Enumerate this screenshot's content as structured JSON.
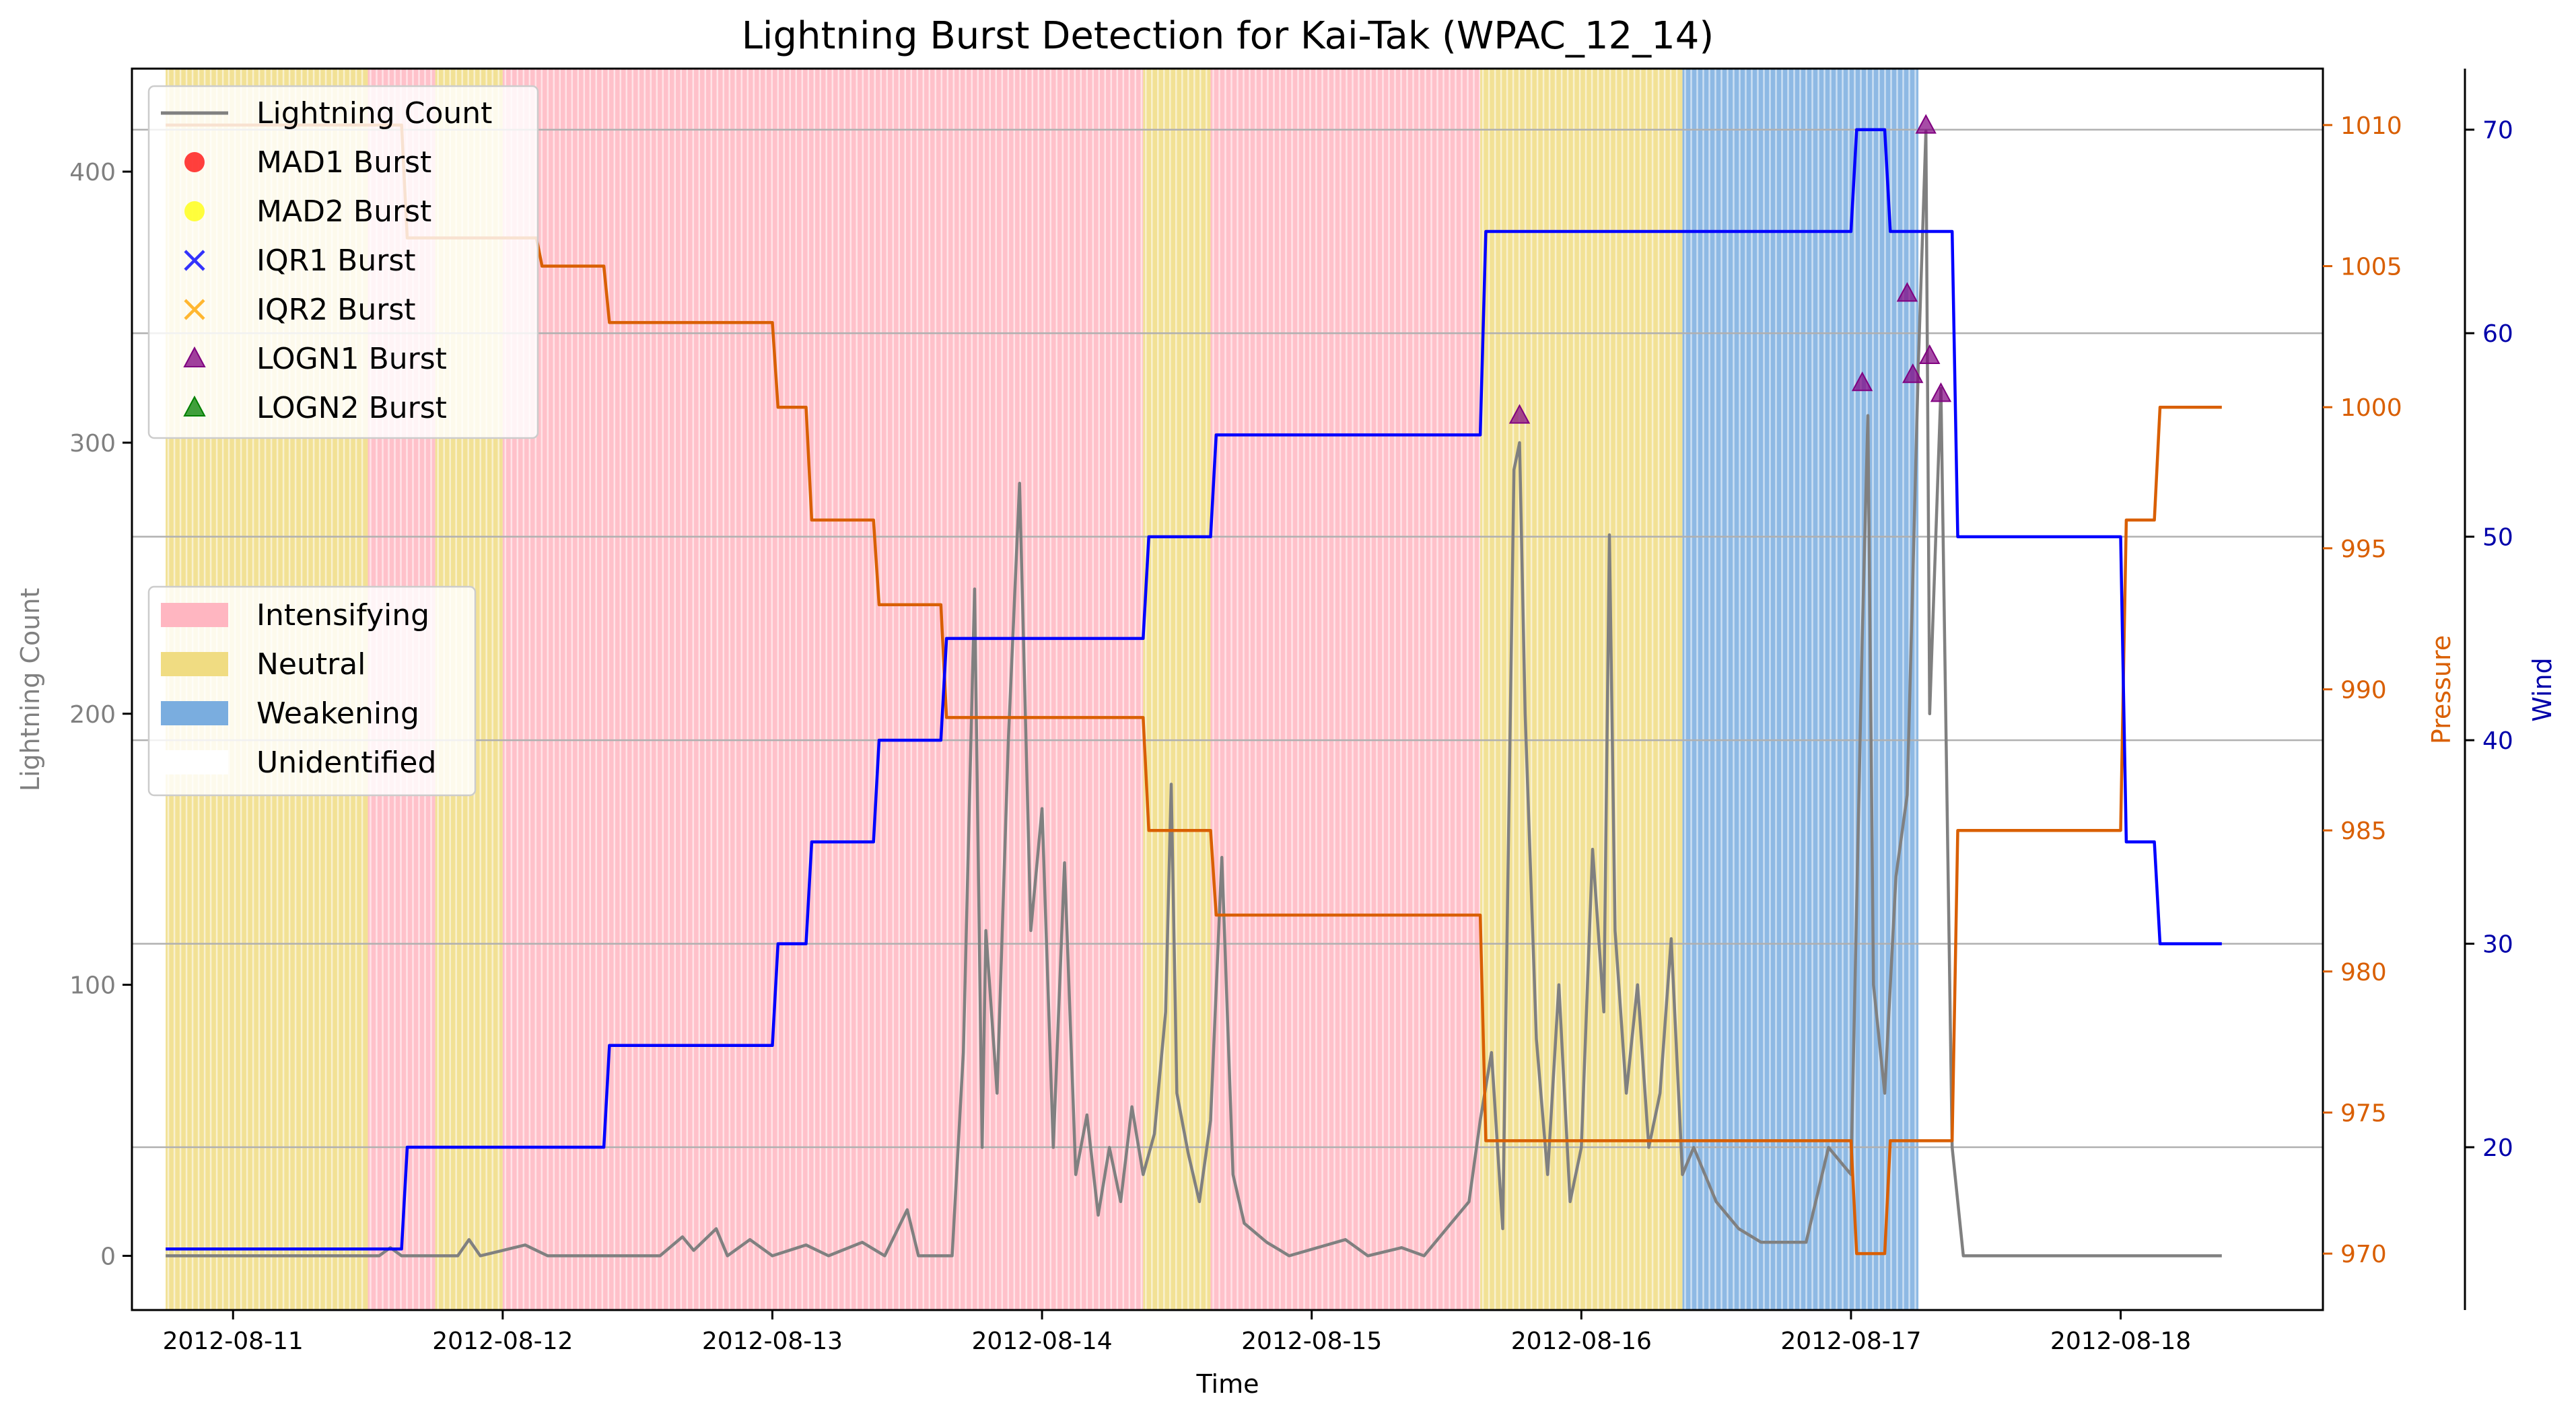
{
  "chart_data": {
    "type": "line",
    "title": "Lightning Burst Detection for Kai-Tak (WPAC_12_14)",
    "xlabel": "Time",
    "ylabel_left": "Lightning Count",
    "ylabel_pressure": "Pressure",
    "ylabel_wind": "Wind",
    "xlim": [
      "2012-08-10T15:00",
      "2012-08-18T18:00"
    ],
    "x_ticks": [
      "2012-08-11",
      "2012-08-12",
      "2012-08-13",
      "2012-08-14",
      "2012-08-15",
      "2012-08-16",
      "2012-08-17",
      "2012-08-18"
    ],
    "lightning_axis": {
      "ylim": [
        -20,
        438
      ],
      "ticks": [
        0,
        100,
        200,
        300,
        400
      ]
    },
    "pressure_axis": {
      "ylim": [
        968,
        1012
      ],
      "ticks": [
        970,
        975,
        980,
        985,
        990,
        995,
        1000,
        1005,
        1010
      ]
    },
    "wind_axis": {
      "ylim": [
        12,
        73
      ],
      "ticks": [
        20,
        30,
        40,
        50,
        60,
        70
      ]
    },
    "grid": "horizontal gridlines at wind ticks",
    "legend_series_location": "upper-left",
    "legend_phase_location": "center-left",
    "legend_series": [
      {
        "label": "Lightning Count",
        "marker": "line",
        "color": "#808080"
      },
      {
        "label": "MAD1 Burst",
        "marker": "circle",
        "color": "#ff0000"
      },
      {
        "label": "MAD2 Burst",
        "marker": "circle",
        "color": "#ffff00"
      },
      {
        "label": "IQR1 Burst",
        "marker": "x",
        "color": "#0000ff"
      },
      {
        "label": "IQR2 Burst",
        "marker": "x",
        "color": "#ffa500"
      },
      {
        "label": "LOGN1 Burst",
        "marker": "triangle",
        "color": "#800080"
      },
      {
        "label": "LOGN2 Burst",
        "marker": "triangle",
        "color": "#008000"
      }
    ],
    "legend_phases": [
      {
        "label": "Intensifying",
        "color": "#ffb6c1"
      },
      {
        "label": "Neutral",
        "color": "#f0dc82"
      },
      {
        "label": "Weakening",
        "color": "#7aaddf"
      },
      {
        "label": "Unidentified",
        "color": "#ffffff"
      }
    ],
    "phases": [
      {
        "phase": "Neutral",
        "start": "2012-08-10T18:00",
        "end": "2012-08-11T12:00"
      },
      {
        "phase": "Intensifying",
        "start": "2012-08-11T12:00",
        "end": "2012-08-11T18:00"
      },
      {
        "phase": "Neutral",
        "start": "2012-08-11T18:00",
        "end": "2012-08-12T00:00"
      },
      {
        "phase": "Intensifying",
        "start": "2012-08-12T00:00",
        "end": "2012-08-14T09:00"
      },
      {
        "phase": "Neutral",
        "start": "2012-08-14T09:00",
        "end": "2012-08-14T15:00"
      },
      {
        "phase": "Intensifying",
        "start": "2012-08-14T15:00",
        "end": "2012-08-15T15:00"
      },
      {
        "phase": "Neutral",
        "start": "2012-08-15T15:00",
        "end": "2012-08-16T09:00"
      },
      {
        "phase": "Weakening",
        "start": "2012-08-16T09:00",
        "end": "2012-08-17T06:00"
      }
    ],
    "pressure_series": {
      "name": "Pressure",
      "color": "#d95f02",
      "points": [
        [
          "2012-08-10T18:00",
          1010
        ],
        [
          "2012-08-11T15:00",
          1010
        ],
        [
          "2012-08-11T15:30",
          1006
        ],
        [
          "2012-08-12T03:00",
          1006
        ],
        [
          "2012-08-12T03:30",
          1005
        ],
        [
          "2012-08-12T09:00",
          1005
        ],
        [
          "2012-08-12T09:30",
          1003
        ],
        [
          "2012-08-13T00:00",
          1003
        ],
        [
          "2012-08-13T00:30",
          1000
        ],
        [
          "2012-08-13T03:00",
          1000
        ],
        [
          "2012-08-13T03:30",
          996
        ],
        [
          "2012-08-13T09:00",
          996
        ],
        [
          "2012-08-13T09:30",
          993
        ],
        [
          "2012-08-13T15:00",
          993
        ],
        [
          "2012-08-13T15:30",
          989
        ],
        [
          "2012-08-14T09:00",
          989
        ],
        [
          "2012-08-14T09:30",
          985
        ],
        [
          "2012-08-14T15:00",
          985
        ],
        [
          "2012-08-14T15:30",
          982
        ],
        [
          "2012-08-15T15:00",
          982
        ],
        [
          "2012-08-15T15:30",
          974
        ],
        [
          "2012-08-17T00:00",
          974
        ],
        [
          "2012-08-17T00:30",
          970
        ],
        [
          "2012-08-17T03:00",
          970
        ],
        [
          "2012-08-17T03:30",
          974
        ],
        [
          "2012-08-17T09:00",
          974
        ],
        [
          "2012-08-17T09:30",
          985
        ],
        [
          "2012-08-18T00:00",
          985
        ],
        [
          "2012-08-18T00:30",
          996
        ],
        [
          "2012-08-18T03:00",
          996
        ],
        [
          "2012-08-18T03:30",
          1000
        ],
        [
          "2012-08-18T09:00",
          1000
        ]
      ]
    },
    "wind_series": {
      "name": "Wind",
      "color": "#0000ff",
      "points": [
        [
          "2012-08-10T18:00",
          15
        ],
        [
          "2012-08-11T15:00",
          15
        ],
        [
          "2012-08-11T15:30",
          20
        ],
        [
          "2012-08-12T09:00",
          20
        ],
        [
          "2012-08-12T09:30",
          25
        ],
        [
          "2012-08-13T00:00",
          25
        ],
        [
          "2012-08-13T00:30",
          30
        ],
        [
          "2012-08-13T03:00",
          30
        ],
        [
          "2012-08-13T03:30",
          35
        ],
        [
          "2012-08-13T09:00",
          35
        ],
        [
          "2012-08-13T09:30",
          40
        ],
        [
          "2012-08-13T15:00",
          40
        ],
        [
          "2012-08-13T15:30",
          45
        ],
        [
          "2012-08-14T09:00",
          45
        ],
        [
          "2012-08-14T09:30",
          50
        ],
        [
          "2012-08-14T15:00",
          50
        ],
        [
          "2012-08-14T15:30",
          55
        ],
        [
          "2012-08-15T15:00",
          55
        ],
        [
          "2012-08-15T15:30",
          65
        ],
        [
          "2012-08-17T00:00",
          65
        ],
        [
          "2012-08-17T00:30",
          70
        ],
        [
          "2012-08-17T03:00",
          70
        ],
        [
          "2012-08-17T03:30",
          65
        ],
        [
          "2012-08-17T09:00",
          65
        ],
        [
          "2012-08-17T09:30",
          50
        ],
        [
          "2012-08-18T00:00",
          50
        ],
        [
          "2012-08-18T00:30",
          35
        ],
        [
          "2012-08-18T03:00",
          35
        ],
        [
          "2012-08-18T03:30",
          30
        ],
        [
          "2012-08-18T09:00",
          30
        ]
      ]
    },
    "lightning_series": {
      "name": "Lightning Count",
      "color": "#808080",
      "points": [
        [
          "2012-08-10T18:00",
          0
        ],
        [
          "2012-08-11T13:00",
          0
        ],
        [
          "2012-08-11T14:00",
          3
        ],
        [
          "2012-08-11T15:00",
          0
        ],
        [
          "2012-08-11T20:00",
          0
        ],
        [
          "2012-08-11T21:00",
          6
        ],
        [
          "2012-08-11T22:00",
          0
        ],
        [
          "2012-08-12T00:00",
          2
        ],
        [
          "2012-08-12T02:00",
          4
        ],
        [
          "2012-08-12T04:00",
          0
        ],
        [
          "2012-08-12T14:00",
          0
        ],
        [
          "2012-08-12T16:00",
          7
        ],
        [
          "2012-08-12T17:00",
          2
        ],
        [
          "2012-08-12T19:00",
          10
        ],
        [
          "2012-08-12T20:00",
          0
        ],
        [
          "2012-08-12T22:00",
          6
        ],
        [
          "2012-08-13T00:00",
          0
        ],
        [
          "2012-08-13T03:00",
          4
        ],
        [
          "2012-08-13T05:00",
          0
        ],
        [
          "2012-08-13T08:00",
          5
        ],
        [
          "2012-08-13T10:00",
          0
        ],
        [
          "2012-08-13T12:00",
          17
        ],
        [
          "2012-08-13T13:00",
          0
        ],
        [
          "2012-08-13T16:00",
          0
        ],
        [
          "2012-08-13T17:00",
          75
        ],
        [
          "2012-08-13T18:00",
          246
        ],
        [
          "2012-08-13T18:40",
          40
        ],
        [
          "2012-08-13T19:00",
          120
        ],
        [
          "2012-08-13T20:00",
          60
        ],
        [
          "2012-08-13T21:00",
          190
        ],
        [
          "2012-08-13T22:00",
          285
        ],
        [
          "2012-08-13T23:00",
          120
        ],
        [
          "2012-08-14T00:00",
          165
        ],
        [
          "2012-08-14T01:00",
          40
        ],
        [
          "2012-08-14T02:00",
          145
        ],
        [
          "2012-08-14T03:00",
          30
        ],
        [
          "2012-08-14T04:00",
          52
        ],
        [
          "2012-08-14T05:00",
          15
        ],
        [
          "2012-08-14T06:00",
          40
        ],
        [
          "2012-08-14T07:00",
          20
        ],
        [
          "2012-08-14T08:00",
          55
        ],
        [
          "2012-08-14T09:00",
          30
        ],
        [
          "2012-08-14T10:00",
          45
        ],
        [
          "2012-08-14T11:00",
          90
        ],
        [
          "2012-08-14T11:30",
          174
        ],
        [
          "2012-08-14T12:00",
          60
        ],
        [
          "2012-08-14T13:00",
          38
        ],
        [
          "2012-08-14T14:00",
          20
        ],
        [
          "2012-08-14T15:00",
          50
        ],
        [
          "2012-08-14T16:00",
          147
        ],
        [
          "2012-08-14T17:00",
          30
        ],
        [
          "2012-08-14T18:00",
          12
        ],
        [
          "2012-08-14T20:00",
          5
        ],
        [
          "2012-08-14T22:00",
          0
        ],
        [
          "2012-08-15T03:00",
          6
        ],
        [
          "2012-08-15T05:00",
          0
        ],
        [
          "2012-08-15T08:00",
          3
        ],
        [
          "2012-08-15T10:00",
          0
        ],
        [
          "2012-08-15T14:00",
          20
        ],
        [
          "2012-08-15T15:00",
          50
        ],
        [
          "2012-08-15T16:00",
          75
        ],
        [
          "2012-08-15T17:00",
          10
        ],
        [
          "2012-08-15T18:00",
          290
        ],
        [
          "2012-08-15T18:30",
          300
        ],
        [
          "2012-08-15T19:00",
          200
        ],
        [
          "2012-08-15T20:00",
          80
        ],
        [
          "2012-08-15T21:00",
          30
        ],
        [
          "2012-08-15T22:00",
          100
        ],
        [
          "2012-08-15T23:00",
          20
        ],
        [
          "2012-08-16T00:00",
          40
        ],
        [
          "2012-08-16T01:00",
          150
        ],
        [
          "2012-08-16T02:00",
          90
        ],
        [
          "2012-08-16T02:30",
          266
        ],
        [
          "2012-08-16T03:00",
          120
        ],
        [
          "2012-08-16T04:00",
          60
        ],
        [
          "2012-08-16T05:00",
          100
        ],
        [
          "2012-08-16T06:00",
          40
        ],
        [
          "2012-08-16T07:00",
          60
        ],
        [
          "2012-08-16T08:00",
          117
        ],
        [
          "2012-08-16T09:00",
          30
        ],
        [
          "2012-08-16T10:00",
          40
        ],
        [
          "2012-08-16T12:00",
          20
        ],
        [
          "2012-08-16T14:00",
          10
        ],
        [
          "2012-08-16T16:00",
          5
        ],
        [
          "2012-08-16T20:00",
          5
        ],
        [
          "2012-08-16T22:00",
          40
        ],
        [
          "2012-08-17T00:00",
          30
        ],
        [
          "2012-08-17T01:00",
          228
        ],
        [
          "2012-08-17T01:30",
          310
        ],
        [
          "2012-08-17T02:00",
          100
        ],
        [
          "2012-08-17T03:00",
          60
        ],
        [
          "2012-08-17T04:00",
          140
        ],
        [
          "2012-08-17T05:00",
          170
        ],
        [
          "2012-08-17T06:00",
          330
        ],
        [
          "2012-08-17T06:40",
          415
        ],
        [
          "2012-08-17T07:00",
          200
        ],
        [
          "2012-08-17T08:00",
          320
        ],
        [
          "2012-08-17T09:00",
          40
        ],
        [
          "2012-08-17T10:00",
          0
        ],
        [
          "2012-08-18T09:00",
          0
        ]
      ]
    },
    "logn1_bursts": [
      [
        "2012-08-15T18:30",
        310
      ],
      [
        "2012-08-17T01:00",
        322
      ],
      [
        "2012-08-17T05:00",
        355
      ],
      [
        "2012-08-17T05:30",
        325
      ],
      [
        "2012-08-17T06:40",
        417
      ],
      [
        "2012-08-17T07:00",
        332
      ],
      [
        "2012-08-17T08:00",
        318
      ]
    ]
  }
}
